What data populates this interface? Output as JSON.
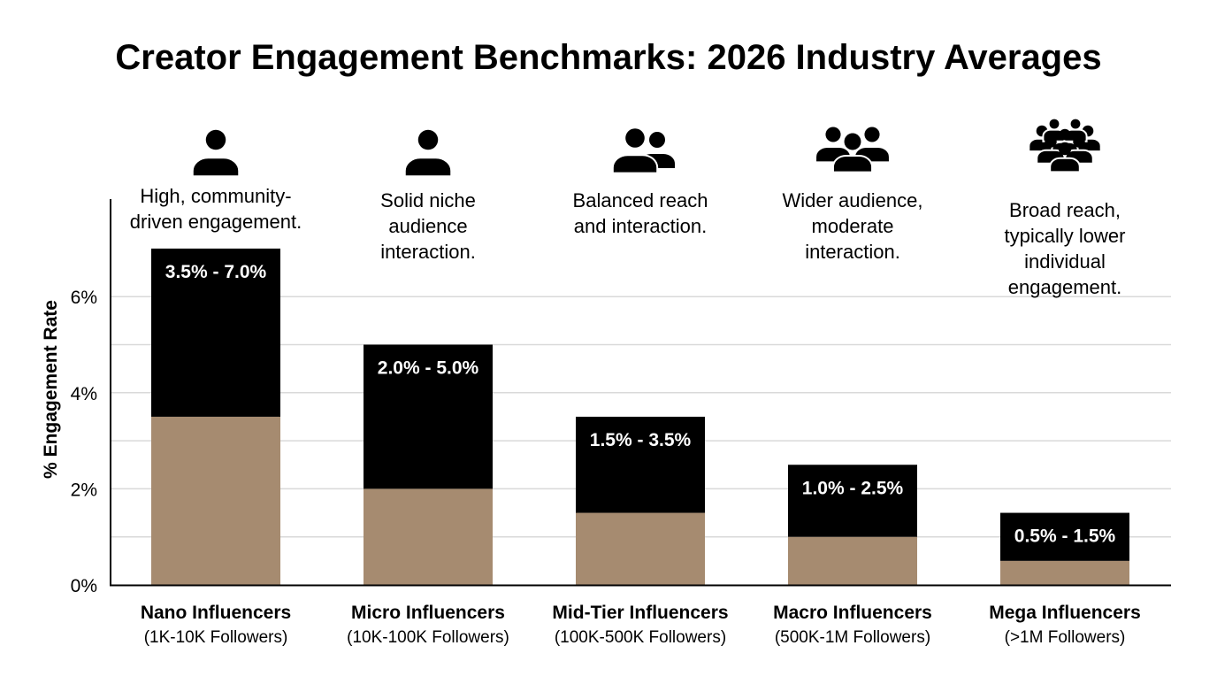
{
  "chart_data": {
    "type": "bar",
    "subtype": "floating-range-stacked",
    "title": "Creator Engagement Benchmarks: 2026 Industry Averages",
    "ylabel": "% Engagement Rate",
    "ylim": [
      0,
      7.5
    ],
    "yticks": [
      "0%",
      "2%",
      "4%",
      "6%"
    ],
    "grid": true,
    "colors": {
      "base": "#a68b70",
      "range": "#000000",
      "grid": "#d9d9d9",
      "text": "#000000"
    },
    "categories": [
      {
        "name": "Nano Influencers",
        "sub": "(1K-10K Followers)",
        "note": [
          "High, community-",
          "driven engagement."
        ],
        "icon": "single-person-icon",
        "low": 3.5,
        "high": 7.0,
        "label": "3.5% - 7.0%"
      },
      {
        "name": "Micro Influencers",
        "sub": "(10K-100K Followers)",
        "note": [
          "Solid niche",
          "audience",
          "interaction."
        ],
        "icon": "single-person-icon",
        "low": 2.0,
        "high": 5.0,
        "label": "2.0% - 5.0%"
      },
      {
        "name": "Mid-Tier Influencers",
        "sub": "(100K-500K Followers)",
        "note": [
          "Balanced reach",
          "and interaction."
        ],
        "icon": "two-people-icon",
        "low": 1.5,
        "high": 3.5,
        "label": "1.5% - 3.5%"
      },
      {
        "name": "Macro Influencers",
        "sub": "(500K-1M Followers)",
        "note": [
          "Wider audience,",
          "moderate",
          "interaction."
        ],
        "icon": "three-people-icon",
        "low": 1.0,
        "high": 2.5,
        "label": "1.0% - 2.5%"
      },
      {
        "name": "Mega Influencers",
        "sub": "(>1M Followers)",
        "note": [
          "Broad reach,",
          "typically lower",
          "individual",
          "engagement."
        ],
        "icon": "crowd-icon",
        "low": 0.5,
        "high": 1.5,
        "label": "0.5% - 1.5%"
      }
    ]
  }
}
